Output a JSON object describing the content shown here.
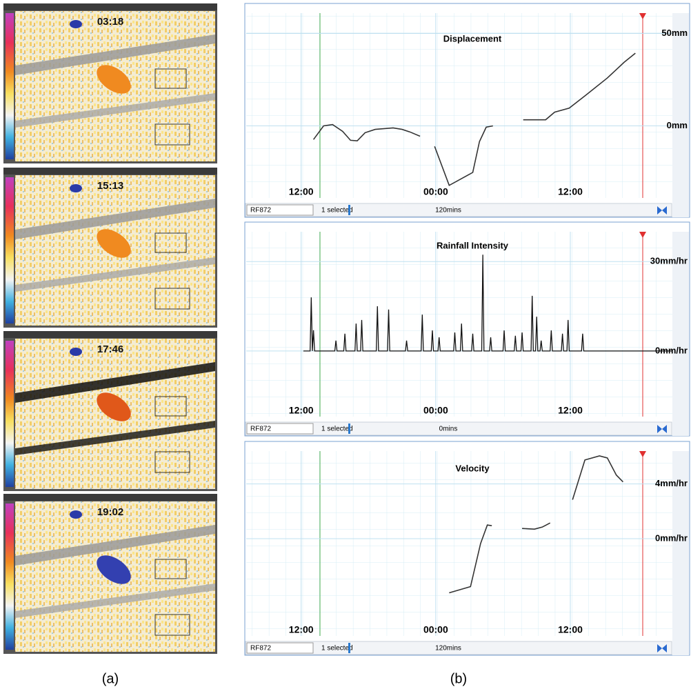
{
  "map_panels": [
    "03:18",
    "15:13",
    "17:46",
    "19:02"
  ],
  "captions": [
    "(a)",
    "(b)"
  ],
  "chart_data": [
    {
      "type": "line",
      "title": "Displacement",
      "color": "#333333",
      "x": [
        13.1,
        14,
        14.8,
        15.7,
        16.4,
        17,
        17.7,
        18.6,
        20.2,
        21,
        21.7,
        22.6,
        null,
        23.9,
        25.2,
        27.3,
        27.9,
        28.5,
        29.1,
        null,
        31.8,
        33.8,
        34.6,
        35.9,
        37.4,
        39.3,
        40.8,
        41.8
      ],
      "values": [
        -7.4,
        0,
        0.7,
        -3,
        -7.8,
        -8.1,
        -3.7,
        -1.9,
        -1.1,
        -1.9,
        -3.3,
        -5.6,
        null,
        -11.1,
        -32.2,
        -25.2,
        -8.5,
        -0.7,
        0,
        null,
        3.3,
        3.3,
        7.4,
        9.6,
        16.7,
        25.9,
        34.4,
        39.3
      ],
      "xlim": [
        7.1,
        45.1
      ],
      "xticks": [
        {
          "value": 12,
          "label": "12:00"
        },
        {
          "value": 24,
          "label": "00:00"
        },
        {
          "value": 36,
          "label": "12:00"
        }
      ],
      "ylim": [
        -39,
        61
      ],
      "yticks": [
        {
          "value": 50,
          "label": "50mm"
        },
        {
          "value": 0,
          "label": "0mm"
        }
      ],
      "footer": {
        "station": "RF872",
        "selection": "1 selected",
        "interval": "120mins"
      }
    },
    {
      "type": "line",
      "title": "Rainfall Intensity",
      "color": "#111111",
      "x": [
        12.2,
        12.8,
        12.9,
        13.0,
        13.1,
        13.2,
        15.0,
        15.1,
        15.2,
        15.8,
        15.9,
        16.0,
        16.8,
        16.9,
        17.0,
        17.3,
        17.4,
        17.5,
        18.7,
        18.8,
        18.9,
        19.7,
        19.8,
        19.9,
        21.3,
        21.4,
        21.5,
        22.7,
        22.8,
        22.9,
        23.6,
        23.7,
        23.8,
        24.2,
        24.3,
        24.4,
        25.6,
        25.7,
        25.8,
        26.2,
        26.3,
        26.4,
        27.2,
        27.3,
        27.4,
        28.1,
        28.2,
        28.3,
        28.8,
        28.9,
        29.0,
        30.0,
        30.1,
        30.2,
        31.0,
        31.1,
        31.2,
        31.6,
        31.7,
        31.8,
        32.5,
        32.6,
        32.7,
        32.9,
        33.0,
        33.1,
        33.3,
        33.4,
        33.5,
        34.2,
        34.3,
        34.4,
        35.2,
        35.3,
        35.4,
        35.7,
        35.8,
        35.9,
        37.0,
        37.1,
        37.2,
        45.1
      ],
      "values": [
        0,
        0,
        18,
        0,
        7,
        0,
        0,
        3.5,
        0,
        0,
        5.8,
        0,
        0,
        9.2,
        0,
        0,
        10.4,
        0,
        0,
        15,
        0,
        0,
        13.9,
        0,
        0,
        3.5,
        0,
        0,
        12.2,
        0,
        0,
        6.9,
        0,
        0,
        4.6,
        0,
        0,
        6.2,
        0,
        0,
        9.2,
        0,
        0,
        5.8,
        0,
        0,
        32.3,
        0,
        0,
        4.6,
        0,
        0,
        6.9,
        0,
        0,
        5.1,
        0,
        0,
        6.2,
        0,
        0,
        18.5,
        0,
        0,
        11.5,
        0,
        0,
        3.5,
        0,
        0,
        6.9,
        0,
        0,
        5.8,
        0,
        0,
        10.4,
        0,
        0,
        5.8,
        0,
        0
      ],
      "xlim": [
        7.1,
        45.1
      ],
      "xticks": [
        {
          "value": 12,
          "label": "12:00"
        },
        {
          "value": 24,
          "label": "00:00"
        },
        {
          "value": 36,
          "label": "12:00"
        }
      ],
      "ylim": [
        -22,
        40
      ],
      "yticks": [
        {
          "value": 30,
          "label": "30mm/hr"
        },
        {
          "value": 0,
          "label": "0mm/hr"
        }
      ],
      "footer": {
        "station": "RF872",
        "selection": "1 selected",
        "interval": "0mins"
      }
    },
    {
      "type": "line",
      "title": "Velocity",
      "color": "#333333",
      "x": [
        25.2,
        27.1,
        28.0,
        28.6,
        29.0,
        null,
        31.7,
        32.8,
        33.5,
        34.2,
        null,
        36.2,
        37.3,
        38.6,
        39.3,
        40.1,
        40.7
      ],
      "values": [
        -3.95,
        -3.5,
        -0.35,
        1.0,
        0.95,
        null,
        0.75,
        0.7,
        0.85,
        1.15,
        null,
        2.85,
        5.75,
        6.05,
        5.9,
        4.65,
        4.15
      ],
      "xlim": [
        7.1,
        45.1
      ],
      "xticks": [
        {
          "value": 12,
          "label": "12:00"
        },
        {
          "value": 24,
          "label": "00:00"
        },
        {
          "value": 36,
          "label": "12:00"
        }
      ],
      "ylim": [
        -7.1,
        6.4
      ],
      "yticks": [
        {
          "value": 4,
          "label": "4mm/hr"
        },
        {
          "value": 0,
          "label": "0mm/hr"
        }
      ],
      "footer": {
        "station": "RF872",
        "selection": "1 selected",
        "interval": "120mins"
      }
    }
  ]
}
